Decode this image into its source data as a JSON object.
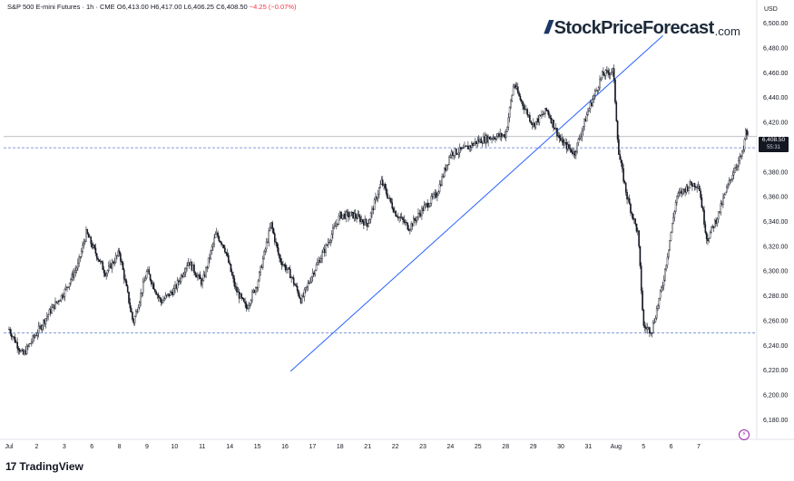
{
  "header": {
    "symbol": "S&P 500 E-mini Futures · 1h · CME",
    "open": "O6,413.00",
    "high": "H6,417.00",
    "low": "L6,406.25",
    "close": "C6,408.50",
    "change": "−4.25 (−0.07%)",
    "change_color": "#f23645"
  },
  "brand": {
    "slashes": "///",
    "name": "StockPriceForecast",
    "tld": ".com"
  },
  "footer": {
    "logo": "17",
    "name": "TradingView"
  },
  "price_badge": {
    "price": "6,408.50",
    "countdown": "55:31"
  },
  "flash_icon": "lightning-icon",
  "colors": {
    "candle": "#131722",
    "trendline": "#2962ff",
    "support_line": "#5b7bd0",
    "current_price_line": "#9598a1",
    "axis_text": "#131722"
  },
  "chart_data": {
    "type": "candlestick",
    "title": "S&P 500 E-mini Futures · 1h · CME",
    "currency": "USD",
    "ylim": [
      6170,
      6510
    ],
    "y_ticks": [
      6180,
      6200,
      6220,
      6240,
      6260,
      6280,
      6300,
      6320,
      6340,
      6360,
      6380,
      6400,
      6420,
      6440,
      6460,
      6480,
      6500
    ],
    "y_tick_labels": [
      "6,180.00",
      "6,200.00",
      "6,220.00",
      "6,240.00",
      "6,260.00",
      "6,280.00",
      "6,300.00",
      "6,320.00",
      "6,340.00",
      "6,360.00",
      "6,380.00",
      "6,400.00",
      "6,420.00",
      "6,440.00",
      "6,460.00",
      "6,480.00",
      "6,500.00"
    ],
    "x_labels": [
      "Jul",
      "2",
      "3",
      "6",
      "8",
      "9",
      "10",
      "11",
      "14",
      "15",
      "16",
      "17",
      "18",
      "21",
      "22",
      "23",
      "24",
      "25",
      "28",
      "29",
      "30",
      "31",
      "Aug",
      "5",
      "6",
      "7"
    ],
    "support_levels": [
      6399.5,
      6250
    ],
    "current_price": 6408.5,
    "trendline": [
      {
        "x": 10.2,
        "y": 6219
      },
      {
        "x": 23.7,
        "y": 6490
      }
    ],
    "grid": false,
    "anchors": [
      {
        "x": 0.0,
        "y": 6253
      },
      {
        "x": 0.5,
        "y": 6232
      },
      {
        "x": 1.0,
        "y": 6250
      },
      {
        "x": 1.5,
        "y": 6268
      },
      {
        "x": 2.0,
        "y": 6283
      },
      {
        "x": 2.5,
        "y": 6305
      },
      {
        "x": 2.8,
        "y": 6331
      },
      {
        "x": 3.0,
        "y": 6321
      },
      {
        "x": 3.5,
        "y": 6298
      },
      {
        "x": 4.0,
        "y": 6315
      },
      {
        "x": 4.5,
        "y": 6258
      },
      {
        "x": 5.0,
        "y": 6300
      },
      {
        "x": 5.5,
        "y": 6275
      },
      {
        "x": 6.0,
        "y": 6285
      },
      {
        "x": 6.5,
        "y": 6308
      },
      {
        "x": 7.0,
        "y": 6290
      },
      {
        "x": 7.5,
        "y": 6330
      },
      {
        "x": 7.8,
        "y": 6320
      },
      {
        "x": 8.2,
        "y": 6286
      },
      {
        "x": 8.6,
        "y": 6270
      },
      {
        "x": 9.0,
        "y": 6290
      },
      {
        "x": 9.5,
        "y": 6338
      },
      {
        "x": 9.8,
        "y": 6310
      },
      {
        "x": 10.2,
        "y": 6297
      },
      {
        "x": 10.6,
        "y": 6276
      },
      {
        "x": 11.0,
        "y": 6298
      },
      {
        "x": 11.5,
        "y": 6320
      },
      {
        "x": 12.0,
        "y": 6345
      },
      {
        "x": 12.5,
        "y": 6345
      },
      {
        "x": 13.0,
        "y": 6338
      },
      {
        "x": 13.5,
        "y": 6372
      },
      {
        "x": 14.0,
        "y": 6347
      },
      {
        "x": 14.5,
        "y": 6335
      },
      {
        "x": 15.0,
        "y": 6350
      },
      {
        "x": 15.5,
        "y": 6362
      },
      {
        "x": 16.0,
        "y": 6395
      },
      {
        "x": 16.5,
        "y": 6398
      },
      {
        "x": 17.0,
        "y": 6405
      },
      {
        "x": 17.5,
        "y": 6408
      },
      {
        "x": 18.0,
        "y": 6410
      },
      {
        "x": 18.3,
        "y": 6452
      },
      {
        "x": 18.5,
        "y": 6440
      },
      {
        "x": 19.0,
        "y": 6418
      },
      {
        "x": 19.5,
        "y": 6430
      },
      {
        "x": 20.0,
        "y": 6405
      },
      {
        "x": 20.5,
        "y": 6395
      },
      {
        "x": 21.0,
        "y": 6430
      },
      {
        "x": 21.5,
        "y": 6458
      },
      {
        "x": 21.9,
        "y": 6462
      },
      {
        "x": 22.1,
        "y": 6395
      },
      {
        "x": 22.4,
        "y": 6360
      },
      {
        "x": 22.8,
        "y": 6330
      },
      {
        "x": 23.0,
        "y": 6255
      },
      {
        "x": 23.3,
        "y": 6252
      },
      {
        "x": 23.7,
        "y": 6290
      },
      {
        "x": 24.2,
        "y": 6360
      },
      {
        "x": 24.7,
        "y": 6370
      },
      {
        "x": 25.0,
        "y": 6370
      },
      {
        "x": 25.3,
        "y": 6325
      },
      {
        "x": 25.7,
        "y": 6345
      },
      {
        "x": 26.0,
        "y": 6365
      },
      {
        "x": 26.3,
        "y": 6383
      },
      {
        "x": 26.6,
        "y": 6395
      },
      {
        "x": 26.7,
        "y": 6412
      },
      {
        "x": 26.8,
        "y": 6408.5
      }
    ]
  }
}
